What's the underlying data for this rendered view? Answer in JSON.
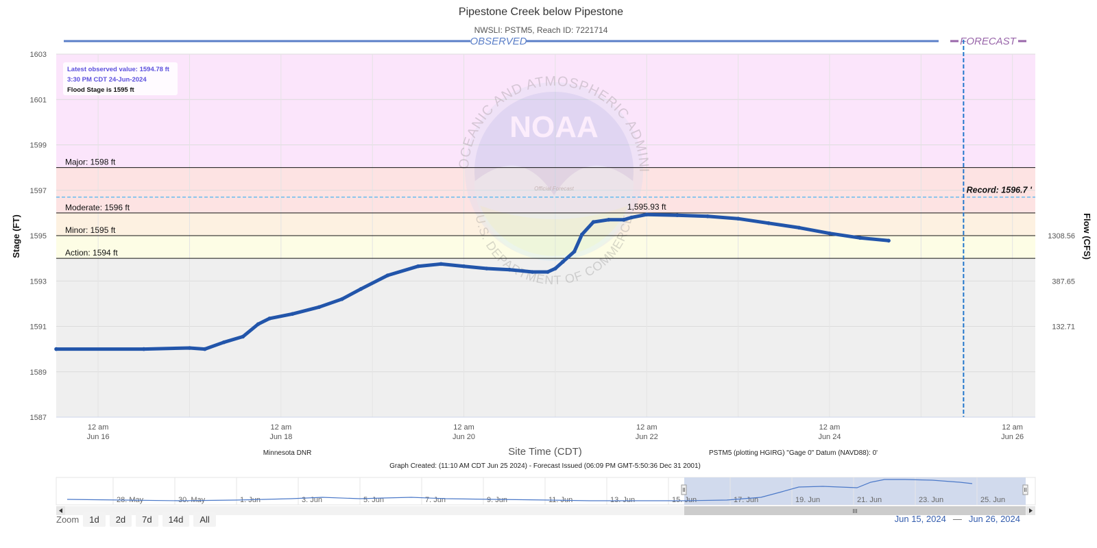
{
  "title": "Pipestone Creek below Pipestone",
  "subtitle": "NWSLI: PSTM5, Reach ID: 7221714",
  "observed_label": "OBSERVED",
  "forecast_label": "FORECAST",
  "info_box": {
    "latest": "Latest observed value: 1594.78 ft",
    "time": "3:30 PM CDT 24-Jun-2024",
    "flood_stage": "Flood Stage is 1595 ft"
  },
  "record_label": "Record: 1596.7 '",
  "peak_label": "1,595.93 ft",
  "watermark": {
    "arc_text": "NATIONAL OCEANIC AND ATMOSPHERIC ADMINISTRATION",
    "bottom_text": "U.S. DEPARTMENT OF COMMERCE",
    "logo_text": "NOAA",
    "stamp_text": "Official Forecast"
  },
  "footer": {
    "source": "Minnesota DNR",
    "datum": "PSTM5 (plotting HGIRG) \"Gage 0\" Datum (NAVD88): 0'",
    "created": "Graph Created: (11:10 AM CDT Jun 25 2024) - Forecast Issued (06:09 PM GMT-5:50:36 Dec 31 2001)"
  },
  "navigator": {
    "labels": [
      "28. May",
      "30. May",
      "1. Jun",
      "3. Jun",
      "5. Jun",
      "7. Jun",
      "9. Jun",
      "11. Jun",
      "13. Jun",
      "15. Jun",
      "17. Jun",
      "19. Jun",
      "21. Jun",
      "23. Jun",
      "25. Jun"
    ],
    "scroll_grip": "III"
  },
  "zoom": {
    "label": "Zoom",
    "buttons": [
      "1d",
      "2d",
      "7d",
      "14d",
      "All"
    ]
  },
  "range": {
    "from": "Jun 15, 2024",
    "to": "Jun 26, 2024"
  },
  "colors": {
    "series": "#2255aa",
    "major_band": "#fbe5fb",
    "moderate_band": "#fde3e3",
    "minor_band": "#fdf1e1",
    "action_band": "#fdfde5",
    "normal_band": "#efefef",
    "observed_bar": "#5b7fc8",
    "forecast_bar": "#9966aa",
    "forecast_line": "#2277cc"
  },
  "chart_data": {
    "type": "line",
    "title": "Pipestone Creek below Pipestone",
    "subtitle": "NWSLI: PSTM5, Reach ID: 7221714",
    "xlabel": "Site Time (CDT)",
    "ylabel": "Stage (FT)",
    "y2label": "Flow (CFS)",
    "xlim": [
      "2024-06-15 13:00",
      "2024-06-26 06:00"
    ],
    "ylim": [
      1587,
      1603
    ],
    "x_ticks": [
      {
        "time": "2024-06-16 00:00",
        "line1": "12 am",
        "line2": "Jun 16"
      },
      {
        "time": "2024-06-18 00:00",
        "line1": "12 am",
        "line2": "Jun 18"
      },
      {
        "time": "2024-06-20 00:00",
        "line1": "12 am",
        "line2": "Jun 20"
      },
      {
        "time": "2024-06-22 00:00",
        "line1": "12 am",
        "line2": "Jun 22"
      },
      {
        "time": "2024-06-24 00:00",
        "line1": "12 am",
        "line2": "Jun 24"
      },
      {
        "time": "2024-06-26 00:00",
        "line1": "12 am",
        "line2": "Jun 26"
      }
    ],
    "y_ticks": [
      1587,
      1589,
      1591,
      1593,
      1595,
      1597,
      1599,
      1601,
      1603
    ],
    "y2_ticks": [
      {
        "stage": 1595.0,
        "label": "1308.56"
      },
      {
        "stage": 1593.0,
        "label": "387.65"
      },
      {
        "stage": 1591.0,
        "label": "132.71"
      }
    ],
    "flood_categories": [
      {
        "name": "Major",
        "stage": 1598,
        "label": "Major: 1598 ft"
      },
      {
        "name": "Moderate",
        "stage": 1596,
        "label": "Moderate: 1596 ft"
      },
      {
        "name": "Minor",
        "stage": 1595,
        "label": "Minor: 1595 ft"
      },
      {
        "name": "Action",
        "stage": 1594,
        "label": "Action: 1594 ft"
      }
    ],
    "record_stage": 1596.7,
    "forecast_start": "2024-06-25 11:10",
    "peak": {
      "time": "2024-06-22 00:00",
      "value": 1595.93
    },
    "series": [
      {
        "name": "Observed",
        "points": [
          [
            "2024-06-15 13:00",
            1590.0
          ],
          [
            "2024-06-16 12:00",
            1590.0
          ],
          [
            "2024-06-17 00:00",
            1590.05
          ],
          [
            "2024-06-17 04:00",
            1590.0
          ],
          [
            "2024-06-17 09:00",
            1590.3
          ],
          [
            "2024-06-17 14:00",
            1590.55
          ],
          [
            "2024-06-17 18:00",
            1591.1
          ],
          [
            "2024-06-17 21:00",
            1591.35
          ],
          [
            "2024-06-18 03:00",
            1591.55
          ],
          [
            "2024-06-18 10:00",
            1591.85
          ],
          [
            "2024-06-18 16:00",
            1592.2
          ],
          [
            "2024-06-18 21:00",
            1592.65
          ],
          [
            "2024-06-19 04:00",
            1593.25
          ],
          [
            "2024-06-19 12:00",
            1593.65
          ],
          [
            "2024-06-19 18:00",
            1593.75
          ],
          [
            "2024-06-20 00:00",
            1593.65
          ],
          [
            "2024-06-20 06:00",
            1593.55
          ],
          [
            "2024-06-20 12:00",
            1593.5
          ],
          [
            "2024-06-20 18:00",
            1593.4
          ],
          [
            "2024-06-20 22:00",
            1593.4
          ],
          [
            "2024-06-21 00:00",
            1593.55
          ],
          [
            "2024-06-21 02:00",
            1593.85
          ],
          [
            "2024-06-21 05:00",
            1594.3
          ],
          [
            "2024-06-21 07:00",
            1595.05
          ],
          [
            "2024-06-21 10:00",
            1595.6
          ],
          [
            "2024-06-21 14:00",
            1595.7
          ],
          [
            "2024-06-21 18:00",
            1595.7
          ],
          [
            "2024-06-21 20:00",
            1595.8
          ],
          [
            "2024-06-22 00:00",
            1595.93
          ],
          [
            "2024-06-22 08:00",
            1595.9
          ],
          [
            "2024-06-22 16:00",
            1595.85
          ],
          [
            "2024-06-23 00:00",
            1595.75
          ],
          [
            "2024-06-23 08:00",
            1595.55
          ],
          [
            "2024-06-23 16:00",
            1595.35
          ],
          [
            "2024-06-24 00:00",
            1595.1
          ],
          [
            "2024-06-24 08:00",
            1594.9
          ],
          [
            "2024-06-24 15:30",
            1594.78
          ]
        ]
      }
    ]
  }
}
